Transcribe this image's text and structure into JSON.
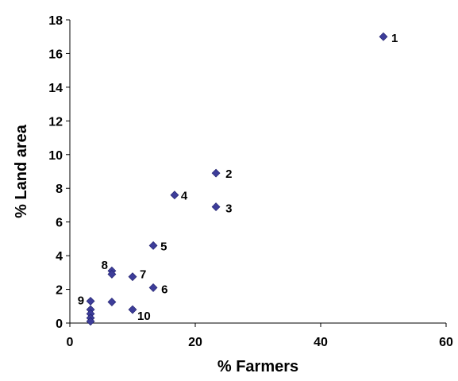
{
  "chart_data": {
    "type": "scatter",
    "xlabel": "% Farmers",
    "ylabel": "% Land area",
    "xlim": [
      0,
      60
    ],
    "ylim": [
      0,
      18
    ],
    "xticks": [
      0,
      20,
      40,
      60
    ],
    "yticks": [
      0,
      2,
      4,
      6,
      8,
      10,
      12,
      14,
      16,
      18
    ],
    "grid": false,
    "legend": "none",
    "marker_color": "#3d3d99",
    "points": [
      {
        "x": 50,
        "y": 17,
        "label": "1"
      },
      {
        "x": 23.3,
        "y": 8.9,
        "label": "2"
      },
      {
        "x": 23.3,
        "y": 6.9,
        "label": "3"
      },
      {
        "x": 16.7,
        "y": 7.6,
        "label": "4"
      },
      {
        "x": 13.3,
        "y": 4.6,
        "label": "5"
      },
      {
        "x": 13.3,
        "y": 2.1,
        "label": "6"
      },
      {
        "x": 10,
        "y": 2.75,
        "label": "7"
      },
      {
        "x": 6.7,
        "y": 3.1,
        "label": "8"
      },
      {
        "x": 6.7,
        "y": 2.9,
        "label": ""
      },
      {
        "x": 6.7,
        "y": 1.25,
        "label": ""
      },
      {
        "x": 3.3,
        "y": 1.3,
        "label": "9"
      },
      {
        "x": 10,
        "y": 0.8,
        "label": "10"
      },
      {
        "x": 3.3,
        "y": 0.8,
        "label": ""
      },
      {
        "x": 3.3,
        "y": 0.55,
        "label": ""
      },
      {
        "x": 3.3,
        "y": 0.3,
        "label": ""
      },
      {
        "x": 3.3,
        "y": 0.1,
        "label": ""
      }
    ]
  }
}
